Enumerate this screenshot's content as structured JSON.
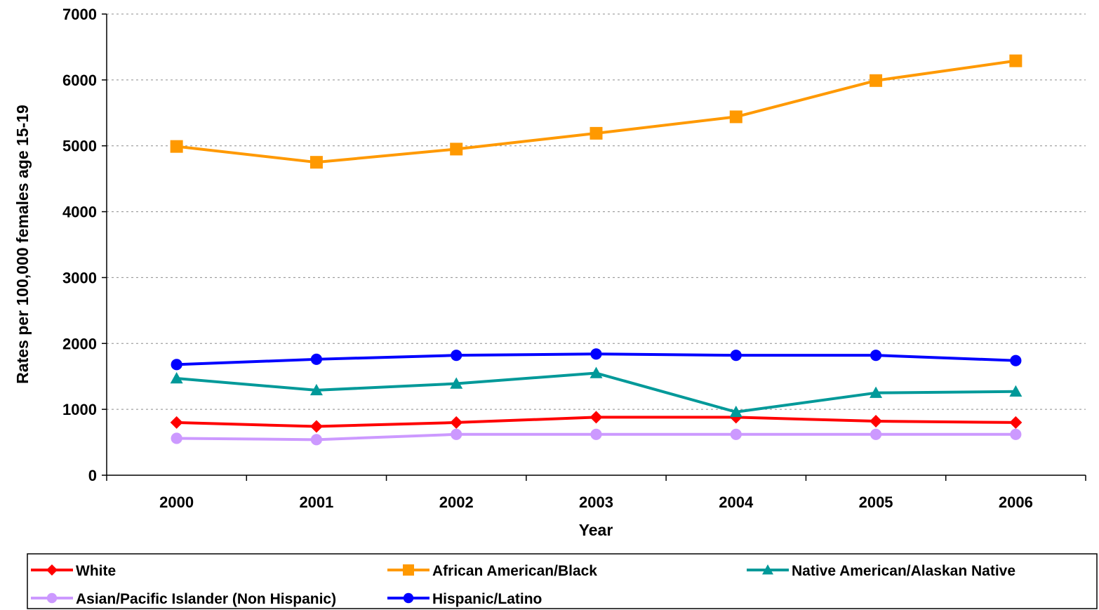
{
  "chart_data": {
    "type": "line",
    "xlabel": "Year",
    "ylabel": "Rates per 100,000 females age 15-19",
    "categories": [
      "2000",
      "2001",
      "2002",
      "2003",
      "2004",
      "2005",
      "2006"
    ],
    "ylim": [
      0,
      7000
    ],
    "yticks": [
      0,
      1000,
      2000,
      3000,
      4000,
      5000,
      6000,
      7000
    ],
    "grid": "horizontal dashed",
    "legend_position": "bottom",
    "series": [
      {
        "name": "White",
        "color": "#ff0000",
        "marker": "diamond",
        "values": [
          800,
          740,
          800,
          880,
          880,
          820,
          800
        ]
      },
      {
        "name": "African American/Black",
        "color": "#ff9900",
        "marker": "square",
        "values": [
          4990,
          4750,
          4950,
          5190,
          5440,
          5990,
          6290
        ]
      },
      {
        "name": "Native American/Alaskan Native",
        "color": "#009999",
        "marker": "triangle",
        "values": [
          1470,
          1290,
          1390,
          1550,
          960,
          1250,
          1270
        ]
      },
      {
        "name": "Asian/Pacific Islander (Non Hispanic)",
        "color": "#cc99ff",
        "marker": "circle",
        "values": [
          560,
          540,
          620,
          620,
          620,
          620,
          620
        ]
      },
      {
        "name": "Hispanic/Latino",
        "color": "#0000ff",
        "marker": "circle",
        "values": [
          1680,
          1760,
          1820,
          1840,
          1820,
          1820,
          1740
        ]
      }
    ]
  }
}
